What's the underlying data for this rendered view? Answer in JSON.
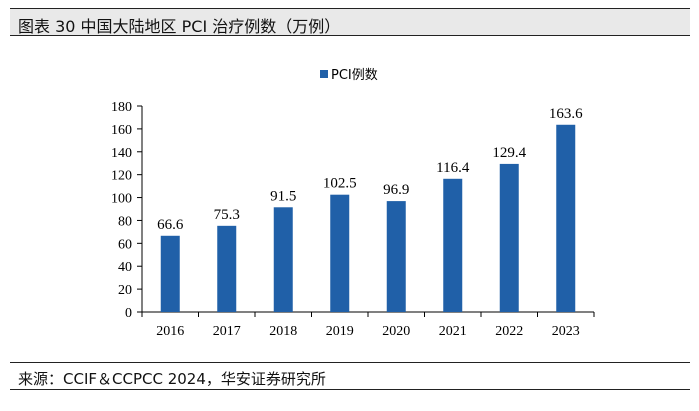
{
  "figure": {
    "title": "图表 30  中国大陆地区 PCI 治疗例数（万例）",
    "source": "来源：CCIF＆CCPCC 2024，华安证券研究所"
  },
  "chart_data": {
    "type": "bar",
    "title": "",
    "xlabel": "",
    "ylabel": "",
    "categories": [
      "2016",
      "2017",
      "2018",
      "2019",
      "2020",
      "2021",
      "2022",
      "2023"
    ],
    "series": [
      {
        "name": "PCI例数",
        "values": [
          66.6,
          75.3,
          91.5,
          102.5,
          96.9,
          116.4,
          129.4,
          163.6
        ]
      }
    ],
    "data_labels": [
      "66.6",
      "75.3",
      "91.5",
      "102.5",
      "96.9",
      "116.4",
      "129.4",
      "163.6"
    ],
    "ylim": [
      0,
      180
    ],
    "yticks": [
      0,
      20,
      40,
      60,
      80,
      100,
      120,
      140,
      160,
      180
    ],
    "legend_position": "top-center",
    "grid": false,
    "bar_color": "#2060a8"
  }
}
